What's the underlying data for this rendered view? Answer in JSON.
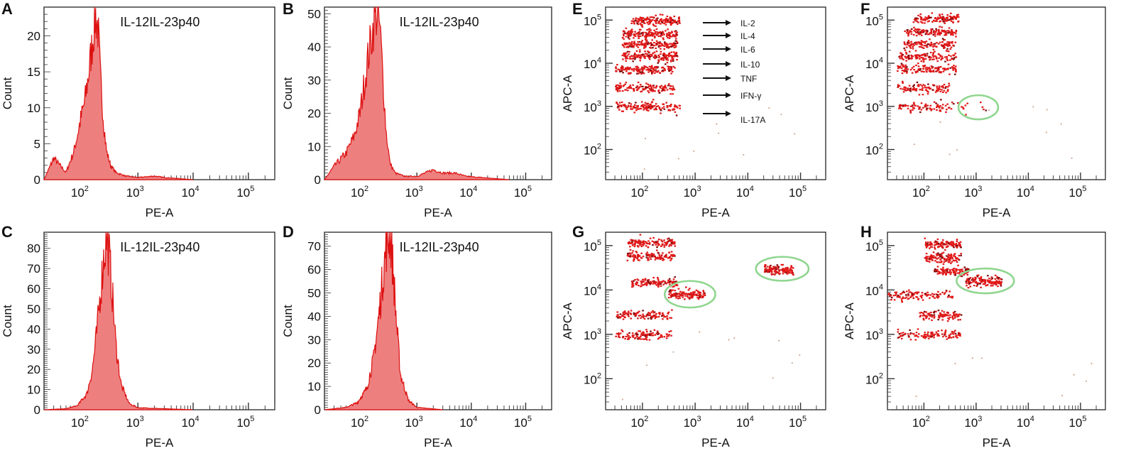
{
  "colors": {
    "hist_fill": "#ee7f7f",
    "hist_line": "#dd1111",
    "dot": "#e01818",
    "dot_dark": "#7a0a0a",
    "gate": "#8fd68f",
    "frame": "#222222"
  },
  "x_tick_labels": [
    {
      "base": "10",
      "exp": "2"
    },
    {
      "base": "10",
      "exp": "3"
    },
    {
      "base": "10",
      "exp": "4"
    },
    {
      "base": "10",
      "exp": "5"
    }
  ],
  "chart_data": [
    {
      "panel": "A",
      "type": "area",
      "title": "IL-12IL-23p40",
      "xlabel": "PE-A",
      "ylabel": "Count",
      "x_scale": "log",
      "xlim": [
        20,
        300000
      ],
      "ylim": [
        0,
        24
      ],
      "yticks": [
        0,
        5,
        10,
        15,
        20
      ],
      "x": [
        20,
        30,
        50,
        70,
        90,
        110,
        130,
        150,
        170,
        190,
        210,
        240,
        270,
        320,
        400,
        600,
        1000,
        2000,
        3000,
        10000
      ],
      "y": [
        0,
        3,
        1,
        4,
        8,
        11,
        15,
        19,
        23,
        21,
        14,
        8,
        4,
        2,
        1,
        0.5,
        0.3,
        0.5,
        0.3,
        0
      ]
    },
    {
      "panel": "B",
      "type": "area",
      "title": "IL-12IL-23p40",
      "xlabel": "PE-A",
      "ylabel": "Count",
      "x_scale": "log",
      "xlim": [
        20,
        300000
      ],
      "ylim": [
        0,
        52
      ],
      "yticks": [
        0,
        10,
        20,
        30,
        40,
        50
      ],
      "x": [
        20,
        30,
        50,
        70,
        90,
        110,
        130,
        150,
        170,
        190,
        210,
        240,
        270,
        320,
        400,
        600,
        1000,
        2000,
        3000,
        5000,
        8000,
        20000,
        50000
      ],
      "y": [
        0,
        4,
        8,
        13,
        20,
        30,
        38,
        44,
        49,
        51,
        45,
        30,
        15,
        5,
        2,
        1,
        1,
        3,
        2,
        2,
        1,
        0.5,
        0
      ]
    },
    {
      "panel": "C",
      "type": "area",
      "title": "IL-12IL-23p40",
      "xlabel": "PE-A",
      "ylabel": "Count",
      "x_scale": "log",
      "xlim": [
        20,
        300000
      ],
      "ylim": [
        0,
        88
      ],
      "yticks": [
        0,
        10,
        20,
        30,
        40,
        50,
        60,
        70,
        80
      ],
      "x": [
        20,
        50,
        80,
        120,
        150,
        180,
        210,
        240,
        270,
        300,
        350,
        400,
        500,
        700,
        1000,
        3000,
        10000
      ],
      "y": [
        0,
        0.5,
        2,
        8,
        20,
        38,
        58,
        75,
        85,
        78,
        55,
        32,
        12,
        3,
        1,
        0.5,
        0
      ]
    },
    {
      "panel": "D",
      "type": "area",
      "title": "IL-12IL-23p40",
      "xlabel": "PE-A",
      "ylabel": "Count",
      "x_scale": "log",
      "xlim": [
        20,
        300000
      ],
      "ylim": [
        0,
        76
      ],
      "yticks": [
        0,
        10,
        20,
        30,
        40,
        50,
        60,
        70
      ],
      "x": [
        20,
        50,
        80,
        120,
        160,
        200,
        240,
        280,
        320,
        360,
        420,
        500,
        700,
        1000,
        3000
      ],
      "y": [
        0,
        1,
        3,
        9,
        22,
        40,
        58,
        72,
        76,
        62,
        38,
        15,
        4,
        1,
        0
      ]
    },
    {
      "panel": "E",
      "type": "scatter",
      "xlabel": "PE-A",
      "ylabel": "APC-A",
      "x_scale": "log",
      "y_scale": "log",
      "xlim": [
        20,
        300000
      ],
      "ylim": [
        20,
        200000
      ],
      "annotations": [
        "IL-2",
        "IL-4",
        "IL-6",
        "IL-10",
        "TNF",
        "IFN-γ",
        "IL-17A"
      ],
      "populations": [
        {
          "x": [
            60,
            500
          ],
          "y": 100000,
          "n": 150
        },
        {
          "x": [
            40,
            450
          ],
          "y": 50000,
          "n": 150
        },
        {
          "x": [
            40,
            450
          ],
          "y": 28000,
          "n": 150
        },
        {
          "x": [
            40,
            450
          ],
          "y": 15000,
          "n": 150
        },
        {
          "x": [
            30,
            400
          ],
          "y": 7500,
          "n": 150
        },
        {
          "x": [
            30,
            400
          ],
          "y": 2800,
          "n": 130
        },
        {
          "x": [
            30,
            500
          ],
          "y": 1000,
          "n": 140
        }
      ],
      "gates": []
    },
    {
      "panel": "F",
      "type": "scatter",
      "xlabel": "PE-A",
      "ylabel": "APC-A",
      "x_scale": "log",
      "y_scale": "log",
      "xlim": [
        20,
        300000
      ],
      "ylim": [
        20,
        200000
      ],
      "populations": [
        {
          "x": [
            60,
            450
          ],
          "y": 110000,
          "n": 120
        },
        {
          "x": [
            40,
            400
          ],
          "y": 55000,
          "n": 120
        },
        {
          "x": [
            40,
            400
          ],
          "y": 28000,
          "n": 120
        },
        {
          "x": [
            30,
            400
          ],
          "y": 15000,
          "n": 120
        },
        {
          "x": [
            30,
            400
          ],
          "y": 7500,
          "n": 120
        },
        {
          "x": [
            30,
            300
          ],
          "y": 2800,
          "n": 100
        },
        {
          "x": [
            30,
            300
          ],
          "y": 1000,
          "n": 80
        },
        {
          "x": [
            300,
            1500
          ],
          "y": 1000,
          "n": 14
        }
      ],
      "gates": [
        {
          "cx": 1100,
          "cy": 950,
          "rx": 0.38,
          "ry": 0.28
        }
      ]
    },
    {
      "panel": "G",
      "type": "scatter",
      "xlabel": "PE-A",
      "ylabel": "APC-A",
      "x_scale": "log",
      "y_scale": "log",
      "xlim": [
        20,
        300000
      ],
      "ylim": [
        20,
        200000
      ],
      "populations": [
        {
          "x": [
            50,
            400
          ],
          "y": 120000,
          "n": 120
        },
        {
          "x": [
            50,
            400
          ],
          "y": 60000,
          "n": 120
        },
        {
          "x": [
            60,
            450
          ],
          "y": 15000,
          "n": 120
        },
        {
          "x": [
            300,
            1500
          ],
          "y": 8000,
          "n": 130
        },
        {
          "x": [
            30,
            350
          ],
          "y": 2800,
          "n": 110
        },
        {
          "x": [
            30,
            350
          ],
          "y": 1000,
          "n": 110
        },
        {
          "x": [
            20000,
            70000
          ],
          "y": 30000,
          "n": 130
        }
      ],
      "gates": [
        {
          "cx": 800,
          "cy": 8000,
          "rx": 0.48,
          "ry": 0.3
        },
        {
          "cx": 45000,
          "cy": 30000,
          "rx": 0.5,
          "ry": 0.27
        }
      ]
    },
    {
      "panel": "H",
      "type": "scatter",
      "xlabel": "PE-A",
      "ylabel": "APC-A",
      "x_scale": "log",
      "y_scale": "log",
      "xlim": [
        20,
        300000
      ],
      "ylim": [
        20,
        200000
      ],
      "populations": [
        {
          "x": [
            100,
            500
          ],
          "y": 110000,
          "n": 110
        },
        {
          "x": [
            100,
            500
          ],
          "y": 55000,
          "n": 110
        },
        {
          "x": [
            150,
            700
          ],
          "y": 28000,
          "n": 110
        },
        {
          "x": [
            600,
            3000
          ],
          "y": 16000,
          "n": 130
        },
        {
          "x": [
            20,
            350
          ],
          "y": 8000,
          "n": 110
        },
        {
          "x": [
            80,
            500
          ],
          "y": 2800,
          "n": 100
        },
        {
          "x": [
            30,
            500
          ],
          "y": 1000,
          "n": 110
        }
      ],
      "gates": [
        {
          "cx": 1500,
          "cy": 16000,
          "rx": 0.55,
          "ry": 0.28
        }
      ]
    }
  ]
}
